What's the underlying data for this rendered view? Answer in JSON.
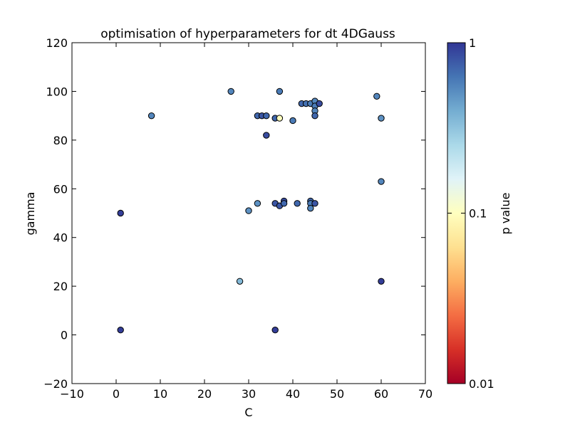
{
  "chart_data": {
    "type": "scatter",
    "title": "optimisation of hyperparameters for dt 4DGauss",
    "xlabel": "C",
    "ylabel": "gamma",
    "xlim": [
      -10,
      70
    ],
    "ylim": [
      -20,
      120
    ],
    "xticks": [
      "−10",
      "0",
      "10",
      "20",
      "30",
      "40",
      "50",
      "60",
      "70"
    ],
    "yticks": [
      "−20",
      "0",
      "20",
      "40",
      "60",
      "80",
      "100",
      "120"
    ],
    "grid": false,
    "colorbar": {
      "label": "p value",
      "scale": "log",
      "range": [
        0.01,
        1
      ],
      "ticks": [
        "0.01",
        "0.1",
        "1"
      ],
      "colormap": "RdYlBu"
    },
    "points": [
      {
        "x": 1,
        "y": 2,
        "p": 0.95
      },
      {
        "x": 1,
        "y": 50,
        "p": 0.95
      },
      {
        "x": 8,
        "y": 90,
        "p": 0.55
      },
      {
        "x": 26,
        "y": 100,
        "p": 0.55
      },
      {
        "x": 28,
        "y": 22,
        "p": 0.35
      },
      {
        "x": 30,
        "y": 51,
        "p": 0.5
      },
      {
        "x": 32,
        "y": 90,
        "p": 0.7
      },
      {
        "x": 32,
        "y": 54,
        "p": 0.5
      },
      {
        "x": 33,
        "y": 90,
        "p": 0.8
      },
      {
        "x": 34,
        "y": 90,
        "p": 0.7
      },
      {
        "x": 34,
        "y": 82,
        "p": 0.85
      },
      {
        "x": 36,
        "y": 89,
        "p": 0.7
      },
      {
        "x": 36,
        "y": 54,
        "p": 0.8
      },
      {
        "x": 36,
        "y": 2,
        "p": 0.95
      },
      {
        "x": 37,
        "y": 100,
        "p": 0.6
      },
      {
        "x": 37,
        "y": 89,
        "p": 0.1
      },
      {
        "x": 37,
        "y": 53,
        "p": 0.8
      },
      {
        "x": 38,
        "y": 55,
        "p": 0.85
      },
      {
        "x": 38,
        "y": 54,
        "p": 0.7
      },
      {
        "x": 40,
        "y": 88,
        "p": 0.6
      },
      {
        "x": 41,
        "y": 54,
        "p": 0.7
      },
      {
        "x": 42,
        "y": 95,
        "p": 0.7
      },
      {
        "x": 43,
        "y": 95,
        "p": 0.65
      },
      {
        "x": 44,
        "y": 95,
        "p": 0.6
      },
      {
        "x": 44,
        "y": 55,
        "p": 0.7
      },
      {
        "x": 44,
        "y": 54,
        "p": 0.6
      },
      {
        "x": 44,
        "y": 52,
        "p": 0.55
      },
      {
        "x": 45,
        "y": 96,
        "p": 0.55
      },
      {
        "x": 45,
        "y": 94,
        "p": 0.6
      },
      {
        "x": 45,
        "y": 92,
        "p": 0.55
      },
      {
        "x": 45,
        "y": 90,
        "p": 0.7
      },
      {
        "x": 45,
        "y": 54,
        "p": 0.8
      },
      {
        "x": 46,
        "y": 95,
        "p": 0.85
      },
      {
        "x": 59,
        "y": 98,
        "p": 0.55
      },
      {
        "x": 60,
        "y": 89,
        "p": 0.5
      },
      {
        "x": 60,
        "y": 63,
        "p": 0.55
      },
      {
        "x": 60,
        "y": 22,
        "p": 0.95
      }
    ]
  }
}
